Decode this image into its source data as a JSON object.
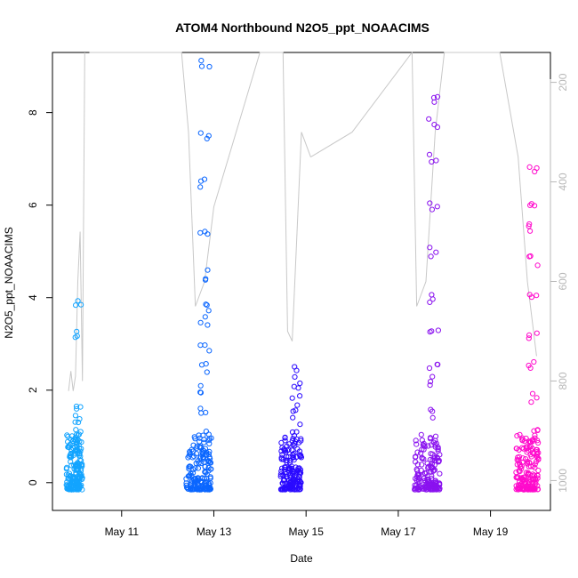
{
  "chart_data": {
    "type": "scatter",
    "title": "ATOM4 Northbound N2O5_ppt_NOAACIMS",
    "xlabel": "Date",
    "ylabel": "N2O5_ppt_NOAACIMS",
    "x_ticks": [
      "May 11",
      "May 13",
      "May 15",
      "May 17",
      "May 19"
    ],
    "y_ticks": [
      "0",
      "2",
      "4",
      "6",
      "8"
    ],
    "y_right_ticks": [
      "200",
      "400",
      "600",
      "800",
      "1000"
    ],
    "xlim_days": [
      9.5,
      20.3
    ],
    "ylim": [
      -0.6,
      9.3
    ],
    "y_right_lim": [
      1060,
      140
    ],
    "right_axis_reversed": true,
    "grid": false,
    "legend": "none",
    "series": [
      {
        "date": "2018-05-09",
        "color": "#13a4ff",
        "x_range_days": [
          9.8,
          10.15
        ],
        "y_points": [
          0.1,
          0.2,
          0.3,
          0.4,
          0.5,
          0.6,
          0.8,
          1.0,
          1.2,
          1.4,
          1.6,
          3.2,
          3.95
        ]
      },
      {
        "date": "2018-05-12",
        "color": "#0a66ff",
        "x_range_days": [
          12.4,
          12.95
        ],
        "y_points": [
          0.3,
          0.6,
          1.0,
          1.5,
          2.0,
          2.5,
          2.95,
          3.5,
          3.8,
          4.5,
          5.5,
          6.5,
          7.5,
          9.05
        ]
      },
      {
        "date": "2018-05-14",
        "color": "#2a0aff",
        "x_range_days": [
          14.45,
          14.9
        ],
        "y_points": [
          0.1,
          0.3,
          0.6,
          0.9,
          1.2,
          1.5,
          1.8,
          2.1,
          2.4
        ]
      },
      {
        "date": "2018-05-17",
        "color": "#8a12ef",
        "x_range_days": [
          17.35,
          17.9
        ],
        "y_points": [
          0.3,
          0.8,
          1.5,
          2.2,
          2.6,
          3.2,
          4.0,
          5.0,
          6.0,
          7.0,
          7.8,
          8.35
        ]
      },
      {
        "date": "2018-05-19",
        "color": "#ff0acc",
        "x_range_days": [
          19.55,
          20.05
        ],
        "y_points": [
          0.1,
          0.4,
          0.8,
          1.2,
          1.8,
          2.5,
          3.2,
          4.0,
          4.8,
          5.5,
          6.0,
          6.75
        ]
      }
    ],
    "pressure_trace": {
      "color": "#c8c8c8",
      "segments": [
        {
          "x": [
            9.85,
            9.9,
            9.95,
            10.0,
            10.05,
            10.1,
            10.15,
            10.2
          ],
          "p": [
            820,
            780,
            820,
            790,
            600,
            500,
            800,
            140
          ]
        },
        {
          "x": [
            10.3,
            12.3,
            12.45,
            12.6,
            12.8,
            13.0,
            14.0,
            14.5,
            14.6,
            14.7,
            14.9,
            15.1
          ],
          "p": [
            140,
            140,
            300,
            650,
            600,
            450,
            140,
            140,
            700,
            720,
            300,
            350
          ]
        },
        {
          "x": [
            15.1,
            16.0,
            17.3,
            17.4,
            17.6,
            17.8,
            18.0,
            19.2,
            19.6,
            19.8,
            20.0
          ],
          "p": [
            350,
            300,
            140,
            650,
            600,
            300,
            140,
            140,
            350,
            600,
            750
          ]
        }
      ]
    }
  }
}
